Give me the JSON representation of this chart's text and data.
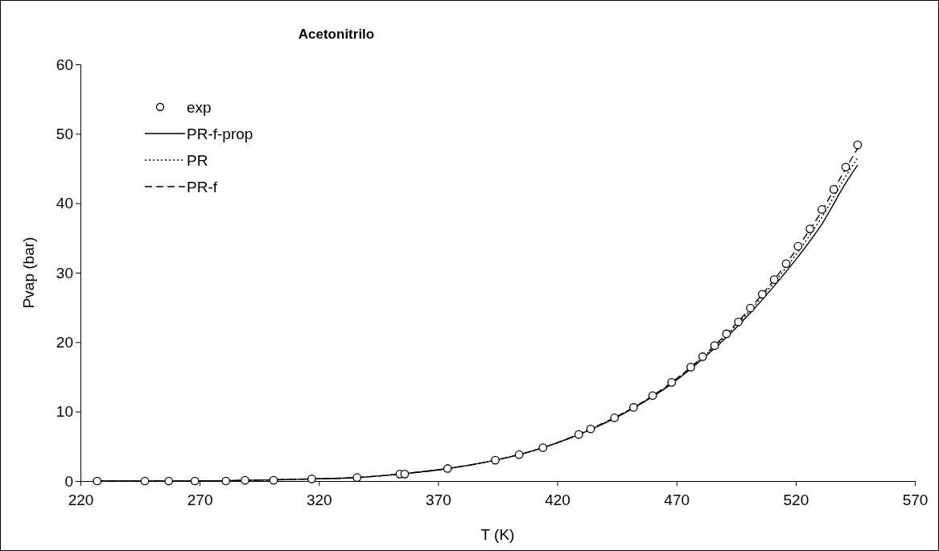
{
  "chart_data": {
    "type": "line",
    "title": "Acetonitrilo",
    "xlabel": "T (K)",
    "ylabel": "Pvap (bar)",
    "xlim": [
      220,
      570
    ],
    "xticks": [
      220,
      270,
      320,
      370,
      420,
      470,
      520,
      570
    ],
    "ylim": [
      0,
      60
    ],
    "yticks": [
      0,
      10,
      20,
      30,
      40,
      50,
      60
    ],
    "grid": false,
    "legend": "top left",
    "series": [
      {
        "name": "exp",
        "type": "scatter",
        "marker": "circle",
        "color": "#000000",
        "x": [
          227,
          247,
          257,
          268,
          281,
          289,
          301,
          317,
          336,
          354,
          356,
          374,
          394,
          404,
          414,
          429,
          434,
          444,
          452,
          460,
          468,
          476,
          481,
          486,
          491,
          496,
          501,
          506,
          511,
          516,
          521,
          526,
          531,
          536,
          541,
          546
        ],
        "values": [
          0,
          0,
          0,
          0,
          0,
          0.1,
          0.1,
          0.3,
          0.5,
          1.0,
          1.0,
          1.8,
          3.0,
          3.8,
          4.8,
          6.7,
          7.5,
          9.1,
          10.6,
          12.3,
          14.2,
          16.4,
          17.9,
          19.5,
          21.2,
          22.9,
          24.9,
          26.9,
          29.0,
          31.3,
          33.8,
          36.3,
          39.1,
          42.0,
          45.2,
          48.4
        ]
      },
      {
        "name": "PR-f-prop",
        "line_style": "solid",
        "color": "#000000",
        "x": [
          227,
          260,
          290,
          317,
          336,
          354,
          374,
          394,
          414,
          434,
          452,
          468,
          481,
          491,
          501,
          511,
          521,
          531,
          541,
          546
        ],
        "values": [
          0,
          0,
          0.1,
          0.3,
          0.5,
          1.0,
          1.8,
          3.0,
          4.8,
          7.4,
          10.5,
          14.0,
          17.6,
          20.7,
          24.2,
          28.1,
          32.3,
          37.0,
          42.9,
          45.5
        ]
      },
      {
        "name": "PR",
        "line_style": "dotted",
        "color": "#000000",
        "x": [
          227,
          260,
          290,
          317,
          336,
          354,
          374,
          394,
          414,
          434,
          452,
          468,
          481,
          491,
          501,
          511,
          521,
          531,
          541,
          546
        ],
        "values": [
          0,
          0,
          0.1,
          0.3,
          0.5,
          1.0,
          1.8,
          3.0,
          4.8,
          7.5,
          10.6,
          14.1,
          17.8,
          21.0,
          24.6,
          28.6,
          33.0,
          38.0,
          43.9,
          46.5
        ]
      },
      {
        "name": "PR-f",
        "line_style": "dashed",
        "color": "#000000",
        "x": [
          227,
          260,
          290,
          317,
          336,
          354,
          374,
          394,
          414,
          434,
          452,
          468,
          481,
          491,
          501,
          511,
          521,
          531,
          541,
          546
        ],
        "values": [
          0,
          0,
          0.1,
          0.3,
          0.5,
          1.0,
          1.8,
          3.0,
          4.8,
          7.5,
          10.6,
          14.2,
          17.9,
          21.2,
          24.9,
          29.0,
          33.7,
          38.9,
          45.0,
          47.9
        ]
      }
    ]
  }
}
